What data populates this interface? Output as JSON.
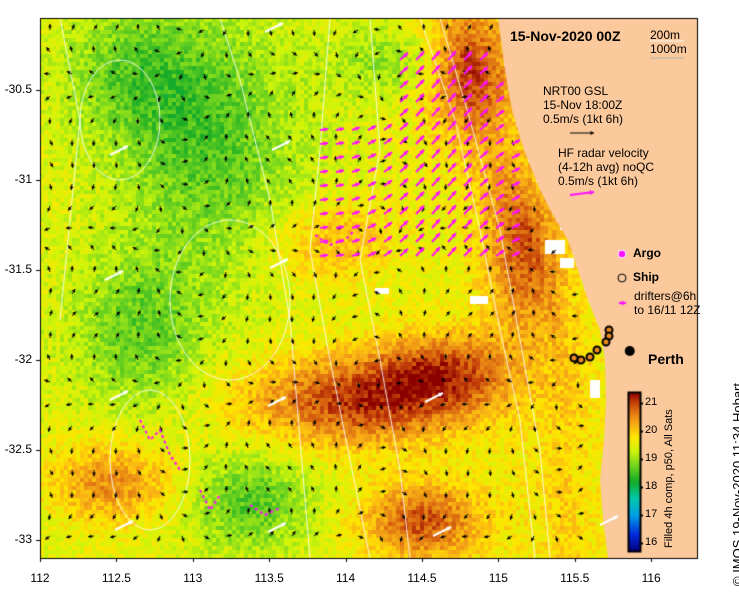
{
  "map": {
    "lon_ticks": [
      112,
      112.5,
      113,
      113.5,
      114,
      114.5,
      115,
      115.5,
      116
    ],
    "lon_tick_labels": [
      "112",
      "112.5",
      "113",
      "113.5",
      "114",
      "114.5",
      "115",
      "115.5",
      "116"
    ],
    "lat_ticks": [
      -30.5,
      -31,
      -31.5,
      -32,
      -32.5,
      -33
    ],
    "lat_tick_labels": [
      "-30.5",
      "-31",
      "-31.5",
      "-32",
      "-32.5",
      "-33"
    ],
    "lon_range": [
      112,
      116.3
    ],
    "lat_range": [
      -33.1,
      -30.1
    ],
    "land_color": "#fbc99b",
    "place": {
      "name": "Perth",
      "lon": 115.86,
      "lat": -31.95
    }
  },
  "header": {
    "date_title": "15-Nov-2020 00Z"
  },
  "depth_legend": {
    "contour_200": "200m",
    "contour_1000": "1000m"
  },
  "currents_legend": {
    "line1": "NRT00 GSL",
    "line2": "15-Nov 18:00Z",
    "line3": "0.5m/s (1kt 6h)",
    "arrow_color": "#000000"
  },
  "hf_legend": {
    "line1": "HF radar velocity",
    "line2": "(4-12h avg) noQC",
    "line3": "0.5m/s (1kt 6h)",
    "arrow_color": "#ff10ff"
  },
  "markers_legend": {
    "argo": "Argo",
    "ship": "Ship",
    "drifters_line1": "drifters@6h",
    "drifters_line2": "to 16/11 12Z"
  },
  "colorbar": {
    "ticks": [
      16,
      17,
      18,
      19,
      20,
      21
    ],
    "tick_labels": [
      "16",
      "17",
      "18",
      "19",
      "20",
      "21"
    ],
    "range": [
      15.7,
      21.4
    ],
    "label": "Filled 4h comp, p50, All Sats"
  },
  "credit": "© IMOS 19-Nov-2020 11:34 Hobart"
}
